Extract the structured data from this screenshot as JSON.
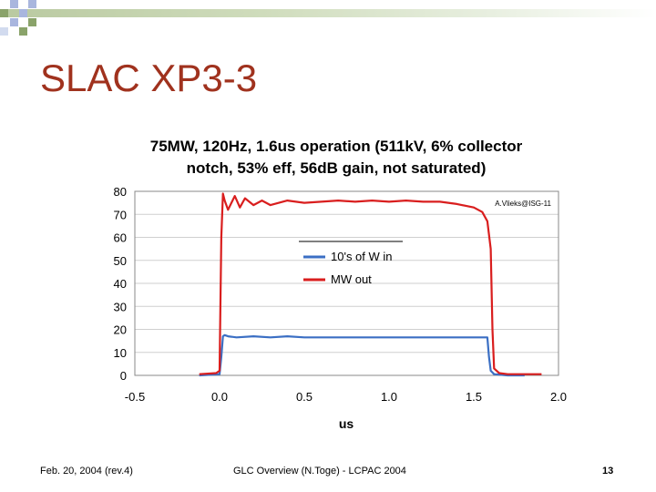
{
  "slide": {
    "title": "SLAC XP3-3",
    "footer_left": "Feb. 20, 2004 (rev.4)",
    "footer_center": "GLC Overview (N.Toge) - LCPAC 2004",
    "page_number": "13"
  },
  "colors": {
    "title": "#a0321e",
    "accent_green": "#8aa36a",
    "accent_blue": "#a9b6de",
    "series_blue": "#3b6fc4",
    "series_red": "#d91e1e"
  },
  "chart_data": {
    "type": "line",
    "title_line1": "75MW, 120Hz, 1.6us operation (511kV, 6% collector",
    "title_line2": "notch, 53% eff, 56dB gain, not saturated)",
    "xlabel": "us",
    "ylabel": "",
    "xlim": [
      -0.5,
      2.0
    ],
    "ylim": [
      0,
      80
    ],
    "x_ticks": [
      "-0.5",
      "0.0",
      "0.5",
      "1.0",
      "1.5",
      "2.0"
    ],
    "y_ticks": [
      "0",
      "10",
      "20",
      "30",
      "40",
      "50",
      "60",
      "70",
      "80"
    ],
    "grid": "horizontal",
    "legend_position": "center",
    "annotation": "A.Vlieks@ISG-11",
    "series": [
      {
        "name": "10's of W in",
        "color": "#3b6fc4",
        "x": [
          -0.12,
          0.0,
          0.01,
          0.02,
          0.03,
          0.05,
          0.1,
          0.2,
          0.3,
          0.4,
          0.5,
          0.7,
          0.9,
          1.1,
          1.3,
          1.5,
          1.58,
          1.59,
          1.6,
          1.62,
          1.7,
          1.8
        ],
        "y": [
          0,
          0.5,
          8,
          17,
          17.5,
          17,
          16.5,
          17,
          16.5,
          17,
          16.5,
          16.5,
          16.5,
          16.5,
          16.5,
          16.5,
          16.5,
          8,
          2,
          0.5,
          0,
          0
        ]
      },
      {
        "name": "MW out",
        "color": "#d91e1e",
        "x": [
          -0.12,
          -0.02,
          0.0,
          0.005,
          0.01,
          0.02,
          0.03,
          0.05,
          0.07,
          0.09,
          0.12,
          0.15,
          0.2,
          0.25,
          0.3,
          0.4,
          0.5,
          0.6,
          0.7,
          0.8,
          0.9,
          1.0,
          1.1,
          1.2,
          1.3,
          1.4,
          1.5,
          1.55,
          1.58,
          1.6,
          1.61,
          1.62,
          1.65,
          1.7,
          1.8,
          1.9
        ],
        "y": [
          0.5,
          1,
          2,
          30,
          60,
          79,
          76,
          72,
          75,
          78,
          73,
          77,
          74,
          76,
          74,
          76,
          75,
          75.5,
          76,
          75.5,
          76,
          75.5,
          76,
          75.5,
          75.5,
          74.5,
          73,
          71,
          67,
          55,
          20,
          3,
          1,
          0.5,
          0.5,
          0.5
        ]
      }
    ]
  }
}
